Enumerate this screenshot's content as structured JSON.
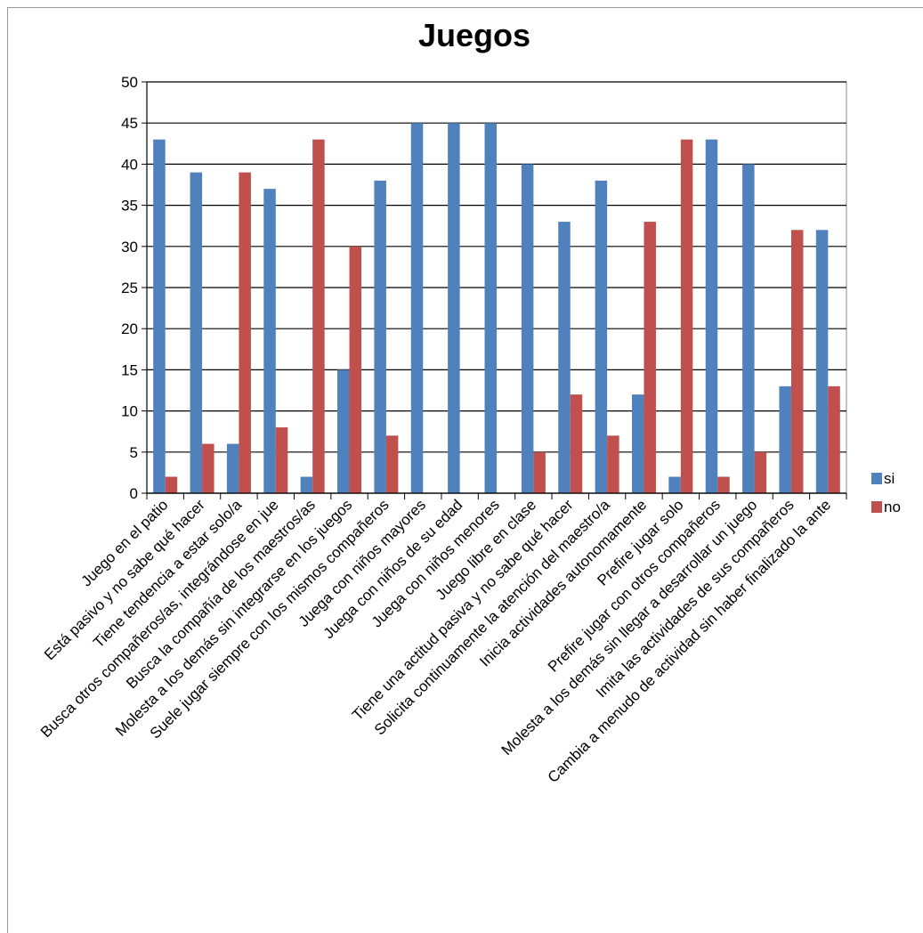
{
  "chart_data": {
    "type": "bar",
    "title": "Juegos",
    "ylim": [
      0,
      50
    ],
    "yticks": [
      0,
      5,
      10,
      15,
      20,
      25,
      30,
      35,
      40,
      45,
      50
    ],
    "grid": true,
    "legend_position": "right",
    "categories": [
      "Juego en el patio",
      "Está pasivo y no sabe qué hacer",
      "Tiene tendencia a estar solo/a",
      "Busca otros compañeros/as, integrándose en jue",
      "Busca la compañía de los maestros/as",
      "Molesta a los demás sin integrarse en los juegos",
      "Suele jugar siempre con los mismos compañeros",
      "Juega con niños mayores",
      "Juega con niños de su edad",
      "Juega con niños menores",
      "Juego libre en clase",
      "Tiene una actitud pasiva y no sabe qué hacer",
      "Solicita continuamente la atención del maestro/a",
      "Inicia actividades autonomamente",
      "Prefire jugar solo",
      "Prefire jugar con otros compañeros",
      "Molesta a los demás sin llegar a desarrollar un juego",
      "Imita las actividades de sus compañeros",
      "Cambia a menudo de actividad sin haber finalizado la ante"
    ],
    "series": [
      {
        "name": "si",
        "color": "#4f81bd",
        "values": [
          43,
          39,
          6,
          37,
          2,
          15,
          38,
          45,
          45,
          45,
          40,
          33,
          38,
          12,
          2,
          43,
          40,
          13,
          32
        ]
      },
      {
        "name": "no",
        "color": "#c0504d",
        "values": [
          2,
          6,
          39,
          8,
          43,
          30,
          7,
          0,
          0,
          0,
          5,
          12,
          7,
          33,
          43,
          2,
          5,
          32,
          13
        ]
      }
    ]
  }
}
